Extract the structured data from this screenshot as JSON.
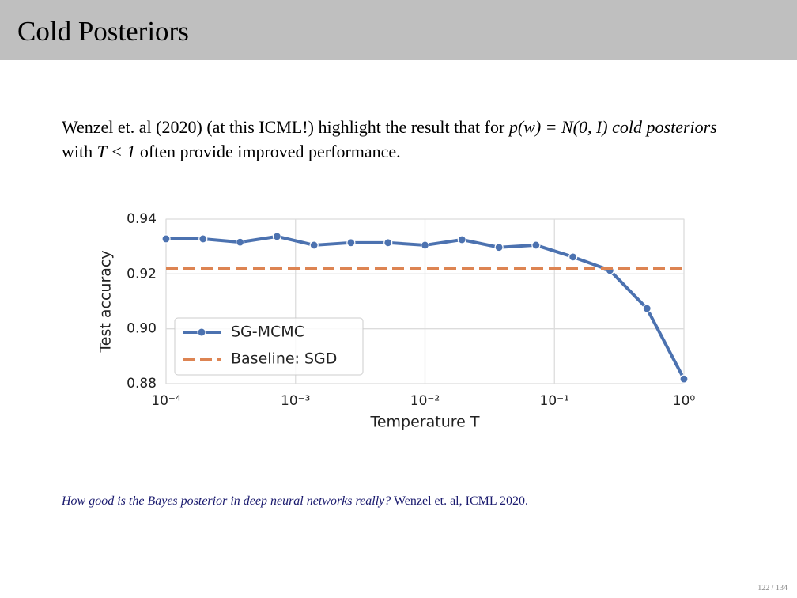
{
  "slide": {
    "title": "Cold Posteriors",
    "body": [
      "Wenzel et. al (2020) (at this ICML!) highlight the result that for ",
      "p(w) = N(0, I)",
      " cold posteriors",
      " with ",
      "T < 1",
      " often provide improved performance."
    ],
    "citation": [
      "How good is the Bayes posterior in deep neural networks really?",
      " Wenzel et. al, ICML 2020."
    ],
    "page": "122 / 134"
  },
  "chart_data": {
    "type": "line",
    "xlabel": "Temperature T",
    "ylabel": "Test accuracy",
    "xscale": "log",
    "xlim": [
      0.0001,
      1
    ],
    "xticks": [
      {
        "value": 0.0001,
        "label": "10⁻⁴"
      },
      {
        "value": 0.001,
        "label": "10⁻³"
      },
      {
        "value": 0.01,
        "label": "10⁻²"
      },
      {
        "value": 0.1,
        "label": "10⁻¹"
      },
      {
        "value": 1,
        "label": "10⁰"
      }
    ],
    "ylim": [
      0.88,
      0.94
    ],
    "yticks": [
      0.88,
      {
        "value": 0.9,
        "label": "0.90"
      },
      0.92,
      0.94
    ],
    "grid": true,
    "legend": "lower left",
    "x": [
      0.0001,
      0.000193,
      0.000373,
      0.00072,
      0.00139,
      0.00268,
      0.00518,
      0.01,
      0.0193,
      0.0373,
      0.072,
      0.139,
      0.268,
      0.518,
      1
    ],
    "series": [
      {
        "name": "SG-MCMC",
        "color": "#4c72b0",
        "values": [
          0.9328,
          0.9328,
          0.9316,
          0.9337,
          0.9305,
          0.9314,
          0.9314,
          0.9305,
          0.9325,
          0.9297,
          0.9305,
          0.9262,
          0.9213,
          0.9074,
          0.8817
        ]
      },
      {
        "name": "Baseline: SGD",
        "color": "#dd8452",
        "style": "dashed",
        "y": 0.9221
      }
    ]
  }
}
